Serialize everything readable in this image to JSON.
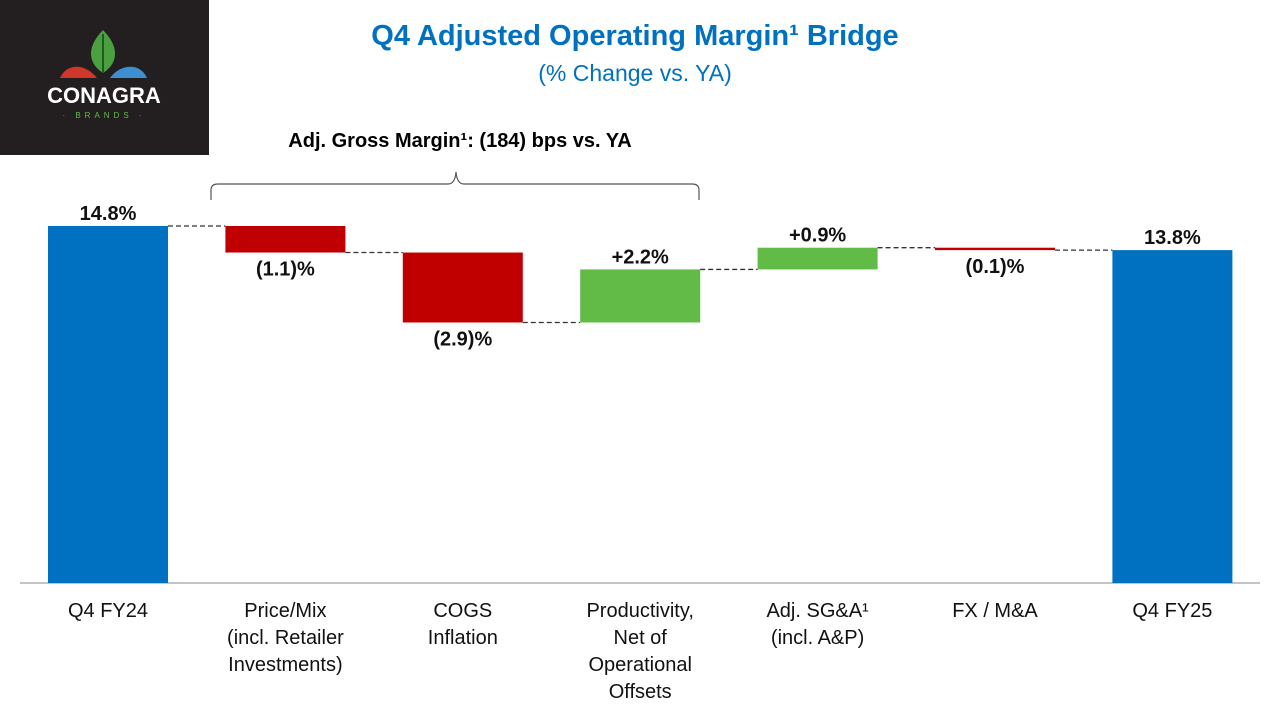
{
  "logo": {
    "text": "CONAGRA",
    "subtext": "BRANDS"
  },
  "chart_data": {
    "type": "waterfall",
    "title": "Q4 Adjusted Operating Margin¹ Bridge",
    "subtitle": "(% Change vs. YA)",
    "annotation": "Adj. Gross Margin¹: (184) bps vs. YA",
    "categories": [
      "Q4 FY24",
      "Price/Mix\n(incl. Retailer\nInvestments)",
      "COGS\nInflation",
      "Productivity,\nNet of\nOperational\nOffsets",
      "Adj. SG&A¹\n(incl. A&P)",
      "FX / M&A",
      "Q4 FY25"
    ],
    "category_lines": [
      [
        "Q4 FY24"
      ],
      [
        "Price/Mix",
        "(incl. Retailer",
        "Investments)"
      ],
      [
        "COGS",
        "Inflation"
      ],
      [
        "Productivity,",
        "Net of",
        "Operational",
        "Offsets"
      ],
      [
        "Adj. SG&A¹",
        "(incl. A&P)"
      ],
      [
        "FX / M&A"
      ],
      [
        "Q4 FY25"
      ]
    ],
    "values": [
      14.8,
      -1.1,
      -2.9,
      2.2,
      0.9,
      -0.1,
      13.8
    ],
    "kinds": [
      "total",
      "delta",
      "delta",
      "delta",
      "delta",
      "delta",
      "total"
    ],
    "data_labels": [
      "14.8%",
      "(1.1)%",
      "(2.9)%",
      "+2.2%",
      "+0.9%",
      "(0.1)%",
      "13.8%"
    ],
    "ylim": [
      0,
      14.8
    ],
    "unit": "%",
    "grid": false,
    "colors": {
      "total": "#0070c0",
      "decrease": "#c00000",
      "increase": "#62bb46",
      "connector": "#333333"
    }
  }
}
